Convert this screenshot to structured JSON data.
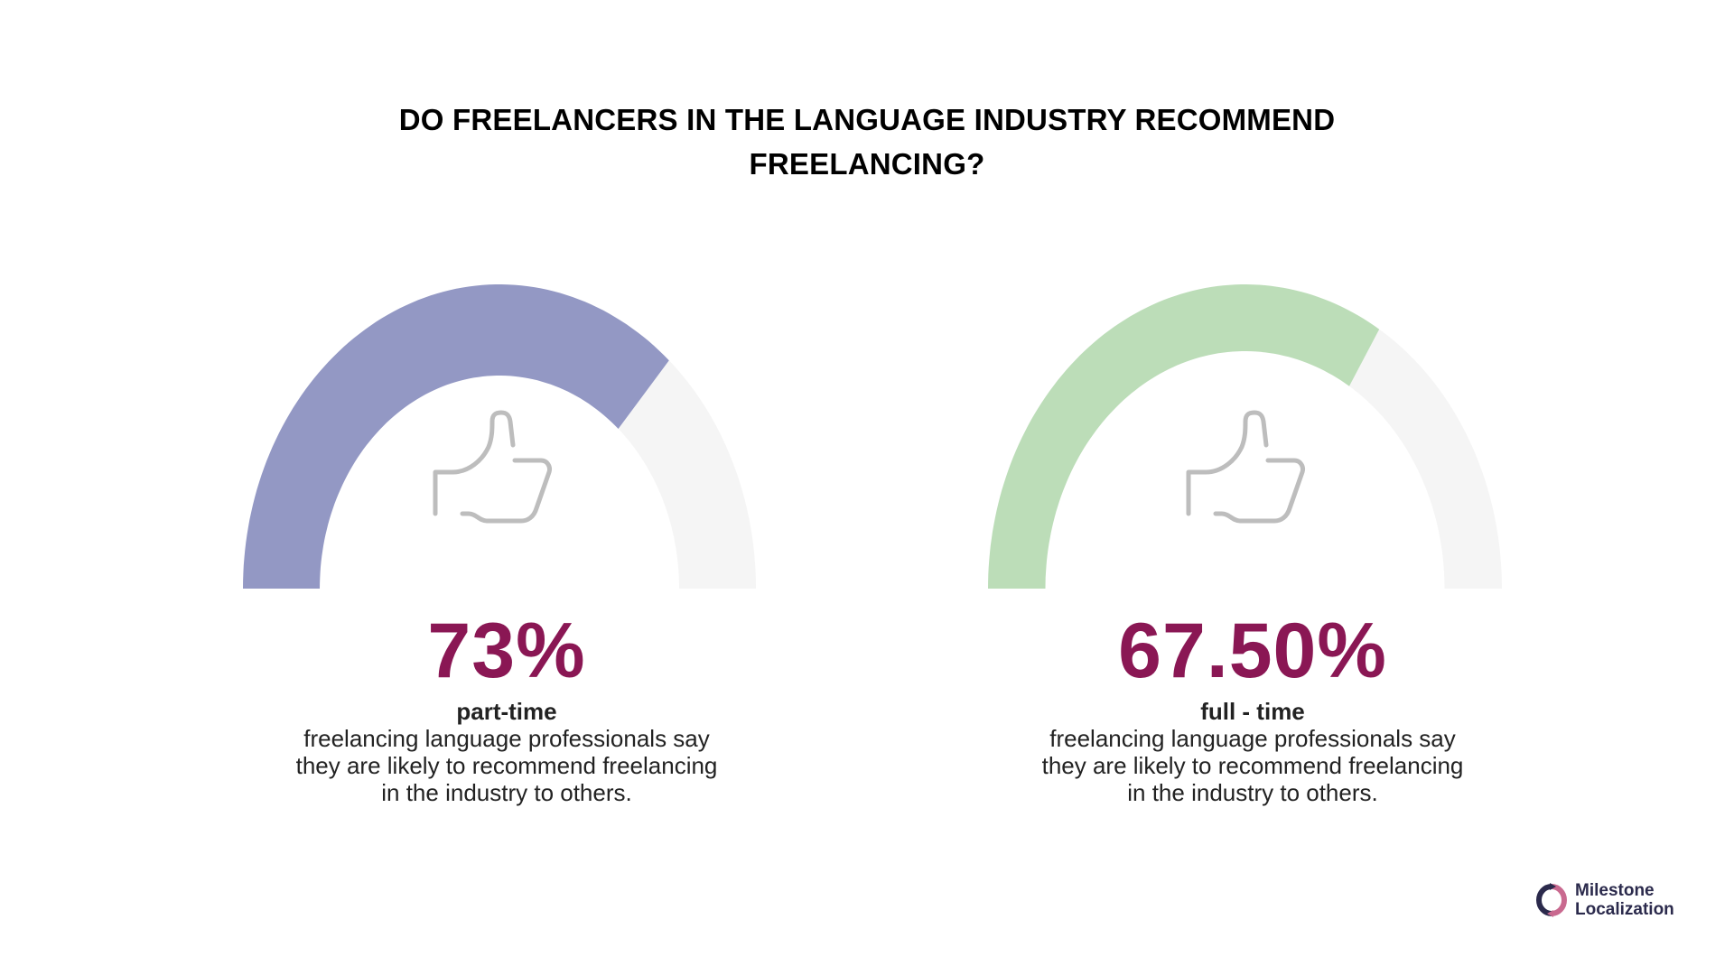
{
  "title": {
    "line1": "DO FREELANCERS IN THE LANGUAGE INDUSTRY RECOMMEND",
    "line2": "FREELANCING?"
  },
  "colors": {
    "accent_text": "#8a1754",
    "track": "#f5f5f5",
    "icon_stroke": "#bdbdbd",
    "logo_navy": "#2b2a4c",
    "logo_pink": "#c9698f"
  },
  "stats": [
    {
      "percent_label": "73%",
      "label": "part-time",
      "desc_lines": [
        "freelancing language professionals say",
        "they are likely to recommend freelancing",
        "in the industry to others."
      ],
      "icon": "thumbs-up-icon"
    },
    {
      "percent_label": "67.50%",
      "label": "full - time",
      "desc_lines": [
        "freelancing language professionals say",
        "they are likely to recommend freelancing",
        "in the industry to others."
      ],
      "icon": "thumbs-up-icon"
    }
  ],
  "logo": {
    "line1": "Milestone",
    "line2": "Localization"
  },
  "chart_data": {
    "type": "gauge",
    "title": "DO FREELANCERS IN THE LANGUAGE INDUSTRY RECOMMEND FREELANCING?",
    "range": [
      0,
      100
    ],
    "categories": [
      "part-time",
      "full - time"
    ],
    "values": [
      73,
      67.5
    ],
    "value_labels": [
      "73%",
      "67.50%"
    ],
    "series": [
      {
        "name": "part-time",
        "value": 73,
        "color": "#9398c4",
        "track_color": "#f5f5f5"
      },
      {
        "name": "full - time",
        "value": 67.5,
        "color": "#bcddb8",
        "track_color": "#f5f5f5"
      }
    ],
    "legend": "none",
    "grid": false
  }
}
